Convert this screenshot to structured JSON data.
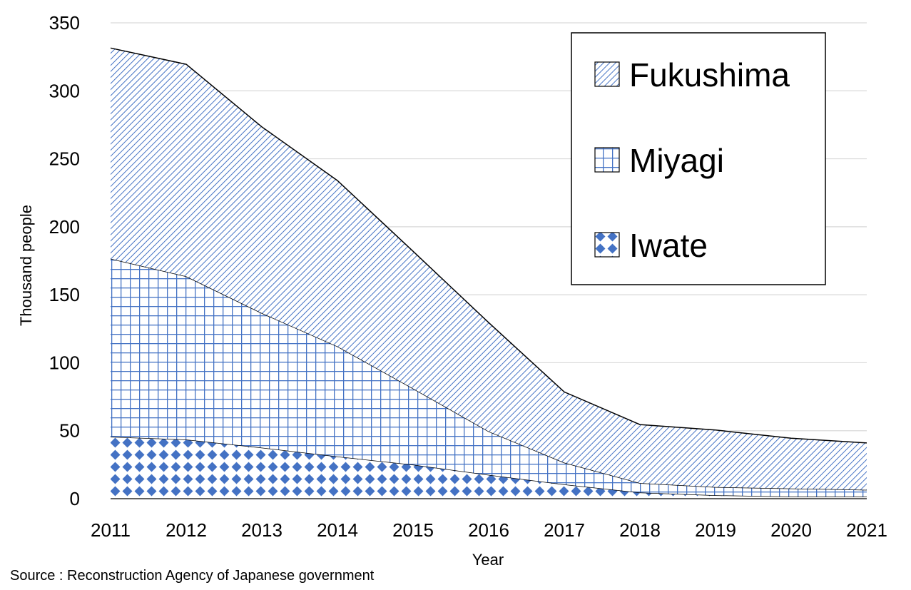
{
  "chart_data": {
    "type": "area",
    "stacked": true,
    "categories": [
      "2011",
      "2012",
      "2013",
      "2014",
      "2015",
      "2016",
      "2017",
      "2018",
      "2019",
      "2020",
      "2021"
    ],
    "series": [
      {
        "name": "Iwate",
        "values": [
          45.5,
          43.5,
          37.5,
          31,
          25,
          17.5,
          10.5,
          4.5,
          2.5,
          1.5,
          1.5
        ],
        "pattern": "diamond"
      },
      {
        "name": "Miyagi",
        "values": [
          131,
          120,
          99,
          81,
          56,
          32,
          16,
          7,
          6,
          6,
          5
        ],
        "pattern": "grid"
      },
      {
        "name": "Fukushima",
        "values": [
          155,
          156,
          137,
          122,
          101,
          80,
          52,
          43,
          42,
          37,
          34.5
        ],
        "pattern": "diagonal"
      }
    ],
    "ylabel": "Thousand people",
    "xlabel": "Year",
    "ylim": [
      0,
      350
    ],
    "yticks": [
      "0",
      "50",
      "100",
      "150",
      "200",
      "250",
      "300",
      "350"
    ],
    "grid": true,
    "legend": {
      "position": "top-right",
      "order": [
        "Fukushima",
        "Miyagi",
        "Iwate"
      ]
    },
    "colors": {
      "pattern": "#4472c4",
      "outline": "#000000",
      "gridline": "#d9d9d9"
    }
  },
  "source": "Source : Reconstruction Agency of Japanese government"
}
